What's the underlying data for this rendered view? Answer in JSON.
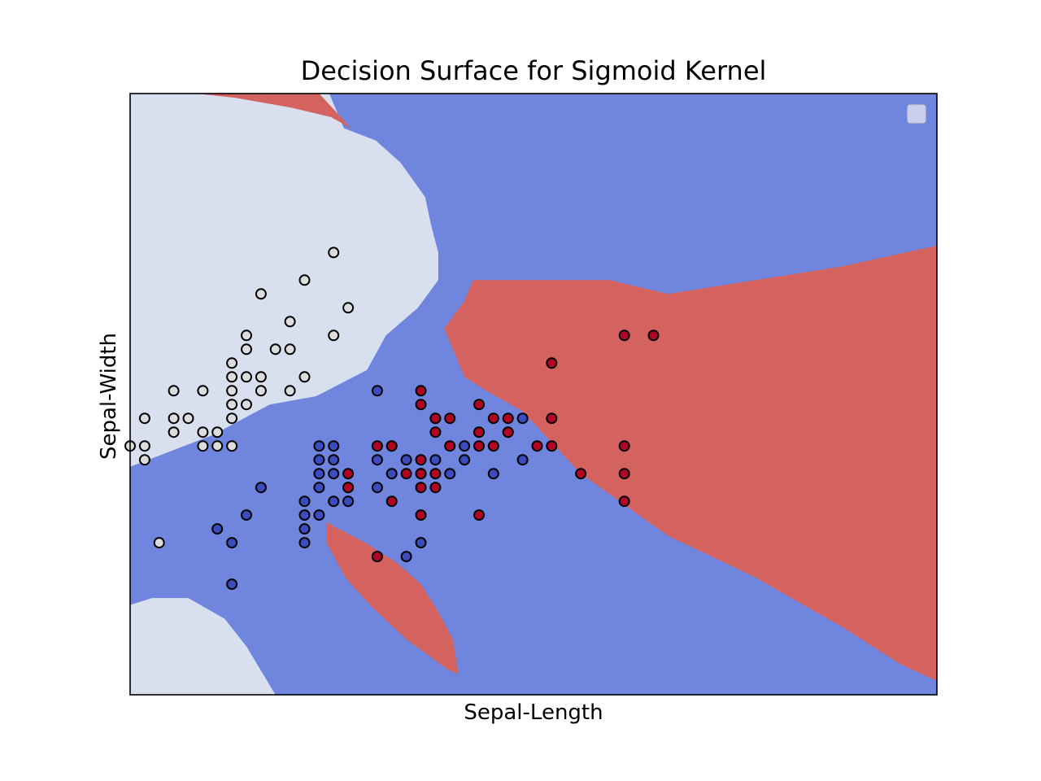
{
  "chart_data": {
    "type": "scatter",
    "title": "Decision Surface for Sigmoid Kernel",
    "xlabel": "Sepal-Length",
    "ylabel": "Sepal-Width",
    "xlim": [
      4.3,
      9.85
    ],
    "ylim": [
      1.2,
      5.55
    ],
    "xticks": [],
    "yticks": [],
    "grid": false,
    "legend": {
      "placement": "top-right",
      "entries": []
    },
    "colors": {
      "region_light": "#d8e0f0",
      "region_blue": "#7086de",
      "region_red": "#d4625f",
      "point_light": "#dcdcdc",
      "point_blue": "#3b4cc0",
      "point_red": "#b40426",
      "edge": "#000000"
    },
    "regions": [
      {
        "class": "light",
        "polygon": [
          [
            4.3,
            5.55
          ],
          [
            5.67,
            5.55
          ],
          [
            5.77,
            5.3
          ],
          [
            5.99,
            5.21
          ],
          [
            6.16,
            5.05
          ],
          [
            6.33,
            4.8
          ],
          [
            6.37,
            4.6
          ],
          [
            6.42,
            4.4
          ],
          [
            6.42,
            4.2
          ],
          [
            6.28,
            4.0
          ],
          [
            6.06,
            3.8
          ],
          [
            5.93,
            3.55
          ],
          [
            5.58,
            3.36
          ],
          [
            5.26,
            3.3
          ],
          [
            4.87,
            3.08
          ],
          [
            4.3,
            2.85
          ]
        ]
      },
      {
        "class": "red",
        "polygon": [
          [
            4.75,
            5.55
          ],
          [
            5.6,
            5.55
          ],
          [
            5.82,
            5.3
          ],
          [
            5.68,
            5.38
          ],
          [
            5.4,
            5.45
          ],
          [
            5.02,
            5.52
          ]
        ]
      },
      {
        "class": "red",
        "polygon": [
          [
            6.66,
            4.2
          ],
          [
            6.92,
            4.2
          ],
          [
            7.6,
            4.2
          ],
          [
            8.0,
            4.1
          ],
          [
            9.2,
            4.3
          ],
          [
            9.85,
            4.45
          ],
          [
            9.85,
            1.3
          ],
          [
            9.6,
            1.42
          ],
          [
            9.2,
            1.69
          ],
          [
            8.6,
            2.05
          ],
          [
            8.0,
            2.35
          ],
          [
            7.4,
            2.8
          ],
          [
            7.0,
            3.25
          ],
          [
            6.75,
            3.4
          ],
          [
            6.6,
            3.5
          ],
          [
            6.46,
            3.85
          ],
          [
            6.6,
            4.05
          ]
        ]
      },
      {
        "class": "light",
        "polygon": [
          [
            4.3,
            1.2
          ],
          [
            4.3,
            1.85
          ],
          [
            4.45,
            1.9
          ],
          [
            4.7,
            1.9
          ],
          [
            4.95,
            1.75
          ],
          [
            5.1,
            1.55
          ],
          [
            5.3,
            1.2
          ]
        ]
      },
      {
        "class": "red",
        "polygon": [
          [
            5.65,
            2.45
          ],
          [
            5.7,
            2.42
          ],
          [
            5.92,
            2.3
          ],
          [
            6.14,
            2.15
          ],
          [
            6.3,
            2.0
          ],
          [
            6.42,
            1.8
          ],
          [
            6.52,
            1.6
          ],
          [
            6.56,
            1.35
          ],
          [
            6.49,
            1.38
          ],
          [
            6.2,
            1.6
          ],
          [
            5.95,
            1.85
          ],
          [
            5.78,
            2.05
          ],
          [
            5.65,
            2.3
          ]
        ]
      }
    ],
    "series": [
      {
        "class": "light",
        "points": [
          [
            4.4,
            2.9
          ],
          [
            4.4,
            3.0
          ],
          [
            4.3,
            3.0
          ],
          [
            4.4,
            3.2
          ],
          [
            4.5,
            2.3
          ],
          [
            4.6,
            3.1
          ],
          [
            4.6,
            3.2
          ],
          [
            4.6,
            3.4
          ],
          [
            4.7,
            3.2
          ],
          [
            4.8,
            3.0
          ],
          [
            4.8,
            3.1
          ],
          [
            4.8,
            3.4
          ],
          [
            4.9,
            3.0
          ],
          [
            4.9,
            3.1
          ],
          [
            5.0,
            3.0
          ],
          [
            5.0,
            3.2
          ],
          [
            5.0,
            3.3
          ],
          [
            5.0,
            3.4
          ],
          [
            5.0,
            3.5
          ],
          [
            5.0,
            3.6
          ],
          [
            5.1,
            3.3
          ],
          [
            5.1,
            3.5
          ],
          [
            5.1,
            3.7
          ],
          [
            5.1,
            3.8
          ],
          [
            5.2,
            3.4
          ],
          [
            5.2,
            3.5
          ],
          [
            5.2,
            4.1
          ],
          [
            5.3,
            3.7
          ],
          [
            5.4,
            3.4
          ],
          [
            5.4,
            3.7
          ],
          [
            5.4,
            3.9
          ],
          [
            5.5,
            3.5
          ],
          [
            5.5,
            4.2
          ],
          [
            5.7,
            3.8
          ],
          [
            5.7,
            4.4
          ],
          [
            5.8,
            4.0
          ]
        ]
      },
      {
        "class": "blue",
        "points": [
          [
            4.9,
            2.4
          ],
          [
            5.0,
            2.0
          ],
          [
            5.0,
            2.3
          ],
          [
            5.1,
            2.5
          ],
          [
            5.2,
            2.7
          ],
          [
            5.5,
            2.3
          ],
          [
            5.5,
            2.4
          ],
          [
            5.5,
            2.5
          ],
          [
            5.5,
            2.6
          ],
          [
            5.6,
            2.5
          ],
          [
            5.6,
            2.7
          ],
          [
            5.6,
            2.8
          ],
          [
            5.6,
            2.9
          ],
          [
            5.6,
            3.0
          ],
          [
            5.7,
            2.6
          ],
          [
            5.7,
            2.8
          ],
          [
            5.7,
            2.9
          ],
          [
            5.7,
            3.0
          ],
          [
            5.8,
            2.6
          ],
          [
            5.8,
            2.7
          ],
          [
            6.0,
            2.2
          ],
          [
            6.0,
            2.7
          ],
          [
            6.0,
            2.9
          ],
          [
            6.0,
            3.4
          ],
          [
            6.1,
            2.8
          ],
          [
            6.1,
            3.0
          ],
          [
            6.2,
            2.2
          ],
          [
            6.2,
            2.9
          ],
          [
            6.3,
            2.3
          ],
          [
            6.3,
            2.8
          ],
          [
            6.4,
            2.9
          ],
          [
            6.4,
            3.2
          ],
          [
            6.5,
            2.8
          ],
          [
            6.6,
            2.9
          ],
          [
            6.6,
            3.0
          ],
          [
            6.7,
            3.1
          ],
          [
            6.8,
            2.8
          ],
          [
            6.9,
            3.1
          ],
          [
            7.0,
            2.9
          ],
          [
            7.0,
            3.2
          ]
        ]
      },
      {
        "class": "red",
        "points": [
          [
            5.8,
            2.7
          ],
          [
            5.8,
            2.8
          ],
          [
            6.0,
            3.0
          ],
          [
            6.0,
            2.2
          ],
          [
            6.1,
            3.0
          ],
          [
            6.1,
            2.6
          ],
          [
            6.2,
            2.8
          ],
          [
            6.3,
            2.5
          ],
          [
            6.3,
            2.7
          ],
          [
            6.3,
            2.8
          ],
          [
            6.3,
            2.9
          ],
          [
            6.3,
            3.3
          ],
          [
            6.3,
            3.4
          ],
          [
            6.4,
            2.7
          ],
          [
            6.4,
            2.8
          ],
          [
            6.4,
            3.1
          ],
          [
            6.4,
            3.2
          ],
          [
            6.5,
            3.0
          ],
          [
            6.5,
            3.2
          ],
          [
            6.7,
            2.5
          ],
          [
            6.7,
            3.0
          ],
          [
            6.7,
            3.1
          ],
          [
            6.7,
            3.3
          ],
          [
            6.8,
            3.0
          ],
          [
            6.8,
            3.2
          ],
          [
            6.9,
            3.1
          ],
          [
            6.9,
            3.2
          ],
          [
            7.1,
            3.0
          ],
          [
            7.2,
            3.0
          ],
          [
            7.2,
            3.2
          ],
          [
            7.2,
            3.6
          ],
          [
            7.4,
            2.8
          ],
          [
            7.7,
            2.6
          ],
          [
            7.7,
            2.8
          ],
          [
            7.7,
            3.0
          ],
          [
            7.7,
            3.8
          ],
          [
            7.9,
            3.8
          ]
        ]
      }
    ]
  }
}
